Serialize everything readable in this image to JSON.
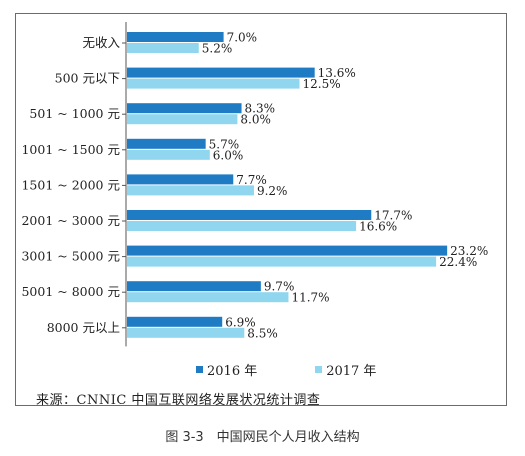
{
  "chart_data": {
    "type": "bar",
    "orientation": "horizontal",
    "categories": [
      "无收入",
      "500 元以下",
      "501 ~ 1000 元",
      "1001 ~ 1500 元",
      "1501 ~ 2000 元",
      "2001 ~ 3000 元",
      "3001 ~ 5000 元",
      "5001 ~ 8000 元",
      "8000 元以上"
    ],
    "series": [
      {
        "name": "2016 年",
        "values": [
          7.0,
          13.6,
          8.3,
          5.7,
          7.7,
          17.7,
          23.2,
          9.7,
          6.9
        ],
        "color": "#1f7cc4"
      },
      {
        "name": "2017 年",
        "values": [
          5.2,
          12.5,
          8.0,
          6.0,
          9.2,
          16.6,
          22.4,
          11.7,
          8.5
        ],
        "color": "#8fd6ee"
      }
    ],
    "value_labels": [
      [
        "7.0%",
        "5.2%"
      ],
      [
        "13.6%",
        "12.5%"
      ],
      [
        "8.3%",
        "8.0%"
      ],
      [
        "5.7%",
        "6.0%"
      ],
      [
        "7.7%",
        "9.2%"
      ],
      [
        "17.7%",
        "16.6%"
      ],
      [
        "23.2%",
        "22.4%"
      ],
      [
        "9.7%",
        "11.7%"
      ],
      [
        "6.9%",
        "8.5%"
      ]
    ],
    "xlim": [
      0,
      25
    ],
    "legend_position": "bottom",
    "grid": false
  },
  "legend": {
    "item1": "2016 年",
    "item2": "2017 年"
  },
  "source": "来源：CNNIC 中国互联网络发展状况统计调查",
  "caption": "图 3-3　中国网民个人月收入结构"
}
